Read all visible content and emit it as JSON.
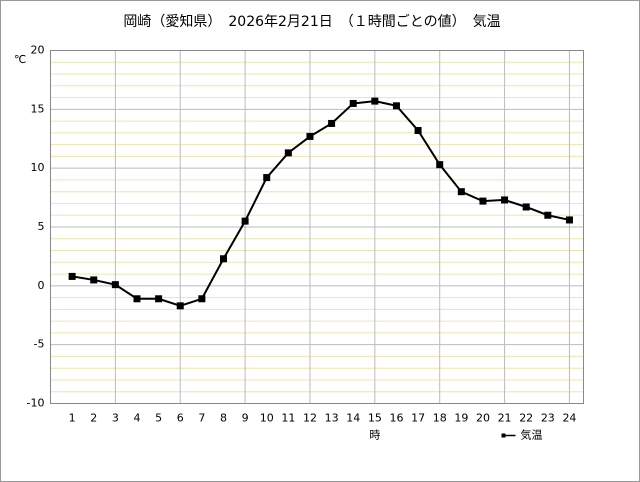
{
  "chart_data": {
    "type": "line",
    "title": "岡崎（愛知県）　2026年2月21日　（１時間ごとの値）　気温",
    "y_label": "℃",
    "x_label": "時",
    "categories": [
      "1",
      "2",
      "3",
      "4",
      "5",
      "6",
      "7",
      "8",
      "9",
      "10",
      "11",
      "12",
      "13",
      "14",
      "15",
      "16",
      "17",
      "18",
      "19",
      "20",
      "21",
      "22",
      "23",
      "24"
    ],
    "series": [
      {
        "name": "気温",
        "color": "#000000",
        "values": [
          0.8,
          0.5,
          0.1,
          -1.1,
          -1.1,
          -1.7,
          -1.1,
          2.3,
          5.5,
          9.2,
          11.3,
          12.7,
          13.8,
          15.5,
          15.7,
          15.3,
          13.2,
          10.3,
          8.0,
          7.2,
          7.3,
          6.7,
          6.0,
          5.6
        ]
      }
    ],
    "ylim": [
      -10,
      20
    ],
    "yticks": [
      -10,
      -5,
      0,
      5,
      10,
      15,
      20
    ],
    "grid": true,
    "minor_grid": true,
    "legend": "bottom-right"
  }
}
